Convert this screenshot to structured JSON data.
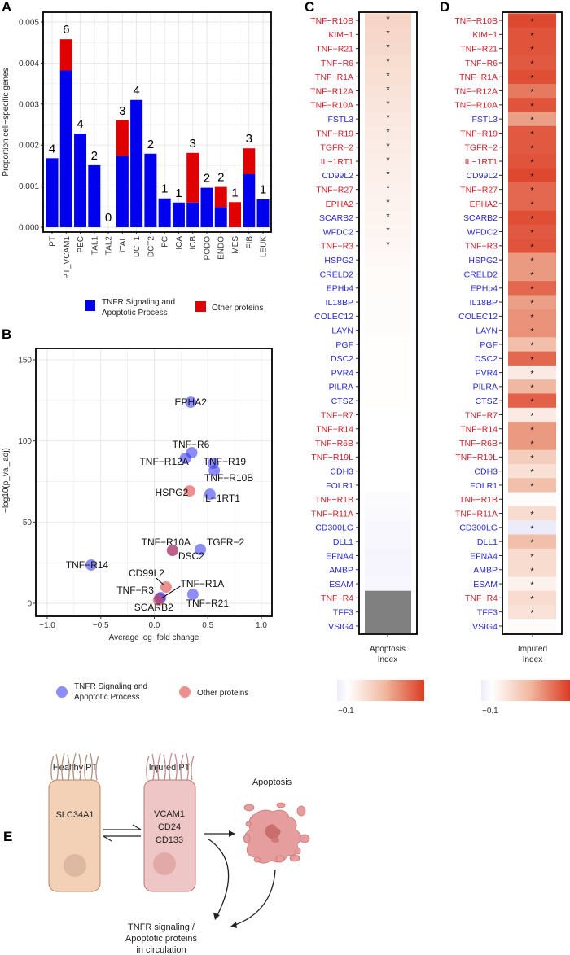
{
  "panels": {
    "a": "A",
    "b": "B",
    "c": "C",
    "d": "D",
    "e": "E"
  },
  "colors": {
    "tnfr": "#0000ee",
    "other": "#e00000",
    "label_red": "#d0202a",
    "label_blue": "#2a2ad0",
    "heat_high": "#dc3b22",
    "heat_low": "#ecebfa",
    "na": "#808080"
  },
  "chart_data": [
    {
      "type": "bar",
      "stacked": true,
      "ylabel": "Proportion cell−specific genes",
      "ylim": [
        0,
        0.005
      ],
      "yticks": [
        "0.000",
        "0.001",
        "0.002",
        "0.003",
        "0.004",
        "0.005"
      ],
      "grid": true,
      "categories": [
        "PT",
        "PT_VCAM1",
        "PEC",
        "TAL1",
        "TAL2",
        "iTAL",
        "DCT1",
        "DCT2",
        "PC",
        "ICA",
        "ICB",
        "PODO",
        "ENDO",
        "MES",
        "FIB",
        "LEUK"
      ],
      "counts": [
        "4",
        "6",
        "4",
        "2",
        "0",
        "3",
        "4",
        "2",
        "1",
        "1",
        "3",
        "2",
        "2",
        "1",
        "3",
        "1"
      ],
      "series": [
        {
          "name": "TNFR Signaling and Apoptotic Process",
          "color": "#0000ee",
          "values": [
            0.00168,
            0.00382,
            0.00228,
            0.00151,
            0,
            0.00173,
            0.0031,
            0.00179,
            0.0007,
            0.0006,
            0.0006,
            0.00096,
            0.00049,
            0,
            0.00129,
            0.00068
          ]
        },
        {
          "name": "Other proteins",
          "color": "#e00000",
          "values": [
            0,
            0.00076,
            0,
            0,
            0,
            0.00087,
            0,
            0,
            0,
            0,
            0.00121,
            0,
            0.00049,
            0.00061,
            0.00063,
            0
          ]
        }
      ],
      "legend": {
        "position": "bottom",
        "items": [
          [
            "TNFR Signaling and",
            "Apoptotic Process"
          ],
          [
            "Other proteins"
          ]
        ]
      }
    },
    {
      "type": "scatter",
      "xlabel": "Average log−fold change",
      "ylabel": "−log10(p_val_adj)",
      "xlim": [
        -1.1,
        1.1
      ],
      "ylim": [
        -7,
        158
      ],
      "xticks": [
        "−1.0",
        "−0.5",
        "0.0",
        "0.5",
        "1.0"
      ],
      "yticks": [
        "0",
        "50",
        "100",
        "150"
      ],
      "grid": true,
      "points": [
        {
          "label": "EPHA2",
          "x": 0.34,
          "y": 123.9,
          "group": "tnfr"
        },
        {
          "label": "TNF−R6",
          "x": 0.35,
          "y": 92.8,
          "group": "tnfr"
        },
        {
          "label": "TNF−R12A",
          "x": 0.29,
          "y": 89.3,
          "group": "tnfr"
        },
        {
          "label": "TNF−R19",
          "x": 0.55,
          "y": 86.3,
          "group": "tnfr"
        },
        {
          "label": "TNF−R10B",
          "x": 0.56,
          "y": 81.8,
          "group": "tnfr"
        },
        {
          "label": "HSPG2",
          "x": 0.33,
          "y": 69.2,
          "group": "other"
        },
        {
          "label": "IL−1RT1",
          "x": 0.52,
          "y": 67.2,
          "group": "tnfr"
        },
        {
          "label": "TNF−R10A",
          "x": 0.17,
          "y": 32.6,
          "group": "tnfr"
        },
        {
          "label": "DSC2",
          "x": 0.17,
          "y": 32.6,
          "group": "other"
        },
        {
          "label": "TGFR−2",
          "x": 0.43,
          "y": 33.1,
          "group": "tnfr"
        },
        {
          "label": "TNF−R14",
          "x": -0.59,
          "y": 23.6,
          "group": "tnfr"
        },
        {
          "label": "CD99L2",
          "x": 0.11,
          "y": 10.0,
          "group": "other"
        },
        {
          "label": "TNF−R3",
          "x": 0.05,
          "y": 3.0,
          "group": "tnfr"
        },
        {
          "label": "TNF−R1A",
          "x": 0.06,
          "y": 3.5,
          "group": "tnfr"
        },
        {
          "label": "SCARB2",
          "x": 0.04,
          "y": 2.0,
          "group": "other"
        },
        {
          "label": "TNF−R21",
          "x": 0.36,
          "y": 5.5,
          "group": "tnfr"
        }
      ],
      "legend": {
        "position": "bottom",
        "items": [
          [
            "TNFR Signaling and",
            "Apoptotic Process"
          ],
          [
            "Other proteins"
          ]
        ]
      }
    },
    {
      "type": "heatmap",
      "xlabel": [
        "Apoptosis",
        "Index"
      ],
      "colorbar_min_label": "−0.1",
      "rows": [
        "TNF−R10B",
        "KIM−1",
        "TNF−R21",
        "TNF−R6",
        "TNF−R1A",
        "TNF−R12A",
        "TNF−R10A",
        "FSTL3",
        "TNF−R19",
        "TGFR−2",
        "IL−1RT1",
        "CD99L2",
        "TNF−R27",
        "EPHA2",
        "SCARB2",
        "WFDC2",
        "TNF−R3",
        "HSPG2",
        "CRELD2",
        "EPHb4",
        "IL18BP",
        "COLEC12",
        "LAYN",
        "PGF",
        "DSC2",
        "PVR4",
        "PILRA",
        "CTSZ",
        "TNF−R7",
        "TNF−R14",
        "TNF−R6B",
        "TNF−R19L",
        "CDH3",
        "FOLR1",
        "TNF−R1B",
        "TNF−R11A",
        "CD300LG",
        "DLL1",
        "EFNA4",
        "AMBP",
        "ESAM",
        "TNF−R4",
        "TFF3",
        "VSIG4"
      ],
      "row_groups": [
        "red",
        "red",
        "red",
        "red",
        "red",
        "red",
        "red",
        "blue",
        "red",
        "red",
        "red",
        "blue",
        "red",
        "red",
        "blue",
        "blue",
        "red",
        "blue",
        "blue",
        "blue",
        "blue",
        "blue",
        "blue",
        "blue",
        "blue",
        "blue",
        "blue",
        "blue",
        "red",
        "red",
        "red",
        "red",
        "blue",
        "blue",
        "red",
        "red",
        "blue",
        "blue",
        "blue",
        "blue",
        "blue",
        "red",
        "blue",
        "blue"
      ],
      "values": [
        0.3,
        0.28,
        0.26,
        0.24,
        0.22,
        0.2,
        0.18,
        0.16,
        0.15,
        0.13,
        0.12,
        0.11,
        0.1,
        0.09,
        0.08,
        0.07,
        0.06,
        0.04,
        0.03,
        0.03,
        0.02,
        0.02,
        0.02,
        0.01,
        0.01,
        0.01,
        0.01,
        0.01,
        0.0,
        0.0,
        0.0,
        0.0,
        0.0,
        0.0,
        -0.02,
        -0.03,
        -0.04,
        -0.04,
        -0.05,
        -0.05,
        -0.04,
        null,
        null,
        null
      ],
      "significant": [
        true,
        true,
        true,
        true,
        true,
        true,
        true,
        true,
        true,
        true,
        true,
        true,
        true,
        true,
        true,
        true,
        true,
        false,
        false,
        false,
        false,
        false,
        false,
        false,
        false,
        false,
        false,
        false,
        false,
        false,
        false,
        false,
        false,
        false,
        false,
        false,
        false,
        false,
        false,
        false,
        false,
        false,
        false,
        false
      ]
    },
    {
      "type": "heatmap",
      "xlabel": [
        "Imputed",
        "Index"
      ],
      "colorbar_min_label": "−0.1",
      "rows": [
        "TNF−R10B",
        "KIM−1",
        "TNF−R21",
        "TNF−R6",
        "TNF−R1A",
        "TNF−R12A",
        "TNF−R10A",
        "FSTL3",
        "TNF−R19",
        "TGFR−2",
        "IL−1RT1",
        "CD99L2",
        "TNF−R27",
        "EPHA2",
        "SCARB2",
        "WFDC2",
        "TNF−R3",
        "HSPG2",
        "CRELD2",
        "EPHb4",
        "IL18BP",
        "COLEC12",
        "LAYN",
        "PGF",
        "DSC2",
        "PVR4",
        "PILRA",
        "CTSZ",
        "TNF−R7",
        "TNF−R14",
        "TNF−R6B",
        "TNF−R19L",
        "CDH3",
        "FOLR1",
        "TNF−R1B",
        "TNF−R11A",
        "CD300LG",
        "DLL1",
        "EFNA4",
        "AMBP",
        "ESAM",
        "TNF−R4",
        "TFF3",
        "VSIG4"
      ],
      "row_groups": [
        "red",
        "red",
        "red",
        "red",
        "red",
        "red",
        "red",
        "blue",
        "red",
        "red",
        "red",
        "blue",
        "red",
        "red",
        "blue",
        "blue",
        "red",
        "blue",
        "blue",
        "blue",
        "blue",
        "blue",
        "blue",
        "blue",
        "blue",
        "blue",
        "blue",
        "blue",
        "red",
        "red",
        "red",
        "red",
        "blue",
        "blue",
        "red",
        "red",
        "blue",
        "blue",
        "blue",
        "blue",
        "blue",
        "red",
        "blue",
        "blue"
      ],
      "values": [
        0.95,
        0.9,
        0.9,
        0.88,
        0.92,
        0.75,
        0.9,
        0.6,
        0.88,
        0.88,
        0.9,
        0.95,
        0.82,
        0.82,
        0.92,
        0.88,
        0.9,
        0.62,
        0.62,
        0.82,
        0.6,
        0.65,
        0.65,
        0.45,
        0.82,
        0.15,
        0.5,
        0.85,
        0.15,
        0.62,
        0.62,
        0.35,
        0.22,
        0.45,
        0.02,
        0.25,
        -0.1,
        0.45,
        0.25,
        0.25,
        0.1,
        0.25,
        0.2,
        0.02
      ],
      "significant": [
        true,
        true,
        true,
        true,
        true,
        true,
        true,
        true,
        true,
        true,
        true,
        true,
        true,
        true,
        true,
        true,
        true,
        true,
        true,
        true,
        true,
        true,
        true,
        true,
        true,
        true,
        true,
        true,
        true,
        true,
        true,
        true,
        true,
        true,
        false,
        true,
        true,
        true,
        true,
        true,
        true,
        true,
        true,
        false
      ]
    }
  ],
  "diagram_e": {
    "healthy_title": "Healthy PT",
    "healthy_marker": "SLC34A1",
    "injured_title": "Injured PT",
    "injured_markers": [
      "VCAM1",
      "CD24",
      "CD133"
    ],
    "apoptosis": "Apoptosis",
    "circulation": [
      "TNFR signaling /",
      "Apoptotic proteins",
      "in circulation"
    ]
  }
}
